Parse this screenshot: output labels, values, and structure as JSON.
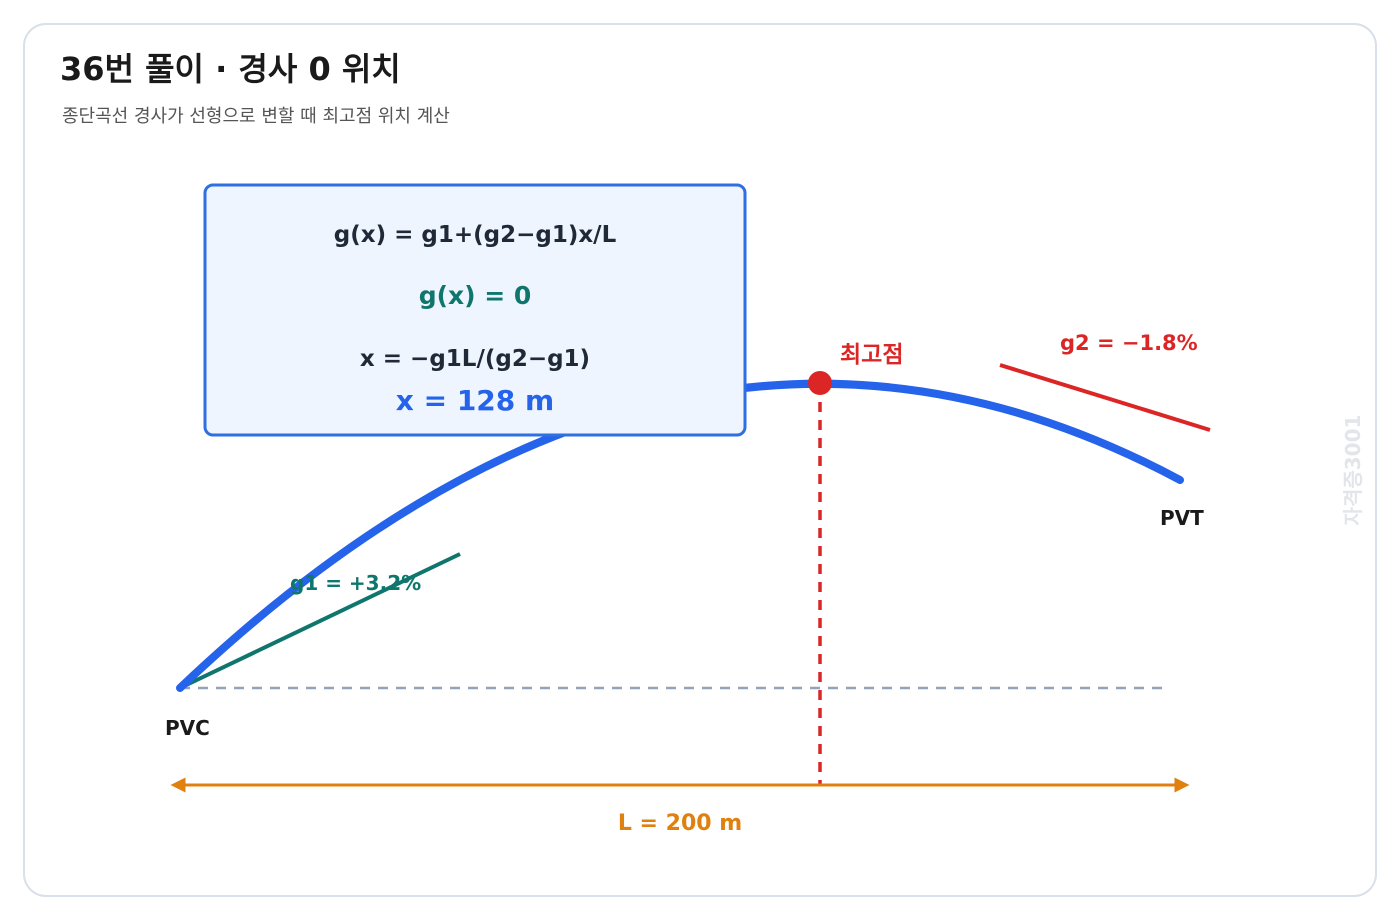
{
  "header": {
    "title": "36번 풀이 · 경사 0 위치",
    "subtitle": "종단곡선 경사가 선형으로 변할 때 최고점 위치 계산"
  },
  "formula_box": {
    "lines": [
      "g(x) = g1+(g2−g1)x/L",
      "g(x) = 0",
      "x = −g1L/(g2−g1)"
    ],
    "result": "x = 128 m"
  },
  "labels": {
    "peak": "최고점",
    "g2": "g2 = −1.8%",
    "pvt": "PVT",
    "pvc": "PVC",
    "g1": "g1 = +3.2%",
    "length": "L = 200 m"
  },
  "watermark": "자격증3001"
}
